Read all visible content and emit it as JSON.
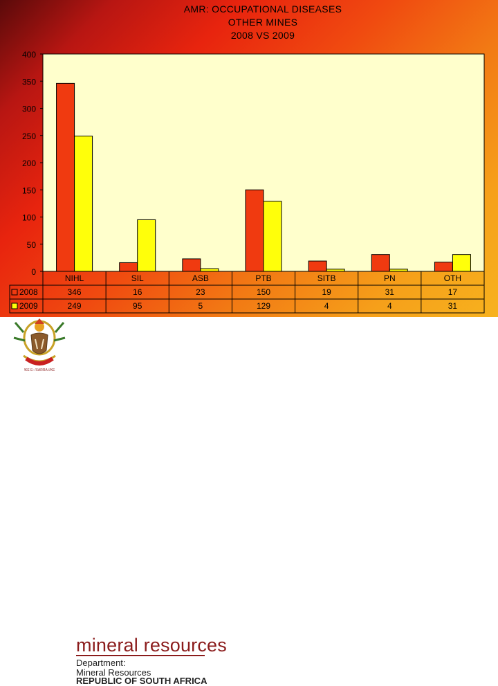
{
  "title_lines": [
    "AMR: OCCUPATIONAL DISEASES",
    "OTHER MINES",
    "2008 VS 2009"
  ],
  "footer": {
    "brand": "mineral resources",
    "department_line1": "Department:",
    "department_line2": "Mineral Resources",
    "country": "REPUBLIC OF SOUTH AFRICA",
    "emblem_motto": "!KE E: /XARRA //KE"
  },
  "chart_data": {
    "type": "bar",
    "categories": [
      "NIHL",
      "SIL",
      "ASB",
      "PTB",
      "SITB",
      "PN",
      "OTH"
    ],
    "series": [
      {
        "name": "2008",
        "values": [
          346,
          16,
          23,
          150,
          19,
          31,
          17
        ],
        "color": "#f03a10"
      },
      {
        "name": "2009",
        "values": [
          249,
          95,
          5,
          129,
          4,
          4,
          31
        ],
        "color": "#ffff0a"
      }
    ],
    "ylim": [
      0,
      400
    ],
    "yticks": [
      0,
      50,
      100,
      150,
      200,
      250,
      300,
      350,
      400
    ],
    "plot_background": "#ffffcc",
    "grid": false,
    "legend": "data-table"
  }
}
